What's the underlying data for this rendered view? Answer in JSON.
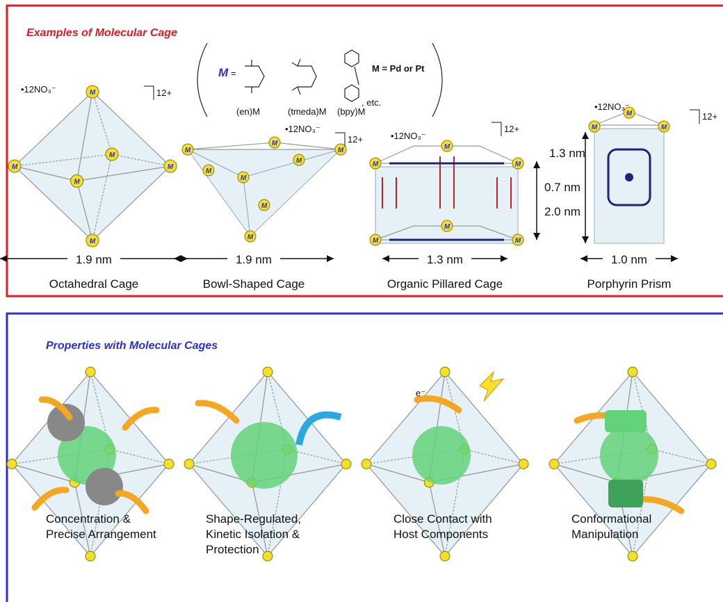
{
  "top_panel": {
    "title": "Examples of Molecular Cage",
    "legend": {
      "symbol": "M",
      "equals": "=",
      "ligands": [
        "(en)M",
        "(tmeda)M",
        "(bpy)M"
      ],
      "etc": ", etc.",
      "metals": "M = Pd or Pt"
    },
    "cages": [
      {
        "label": "Octahedral Cage",
        "size": "1.9 nm",
        "counterion": "•12NO₃⁻",
        "charge": "12+"
      },
      {
        "label": "Bowl-Shaped Cage",
        "size": "1.9 nm",
        "counterion": "•12NO₃⁻",
        "charge": "12+"
      },
      {
        "label": "Organic Pillared Cage",
        "size": "1.3 nm",
        "counterion": "•12NO₃⁻",
        "charge": "12+",
        "heights": [
          "0.7 nm",
          "2.0 nm"
        ]
      },
      {
        "label": "Porphyrin Prism",
        "size": "1.0 nm",
        "counterion": "•12NO₃⁻",
        "charge": "12+",
        "heights": [
          "1.3 nm"
        ]
      }
    ]
  },
  "bottom_panel": {
    "title": "Properties with Molecular Cages",
    "electron": "e⁻",
    "items": [
      {
        "label": [
          "Concentration &",
          "Precise Arrangement"
        ]
      },
      {
        "label": [
          "Shape-Regulated,",
          "Kinetic Isolation &",
          "Protection"
        ]
      },
      {
        "label": [
          "Close Contact with",
          "Host Components"
        ]
      },
      {
        "label": [
          "Conformational",
          "Manipulation"
        ]
      }
    ]
  }
}
